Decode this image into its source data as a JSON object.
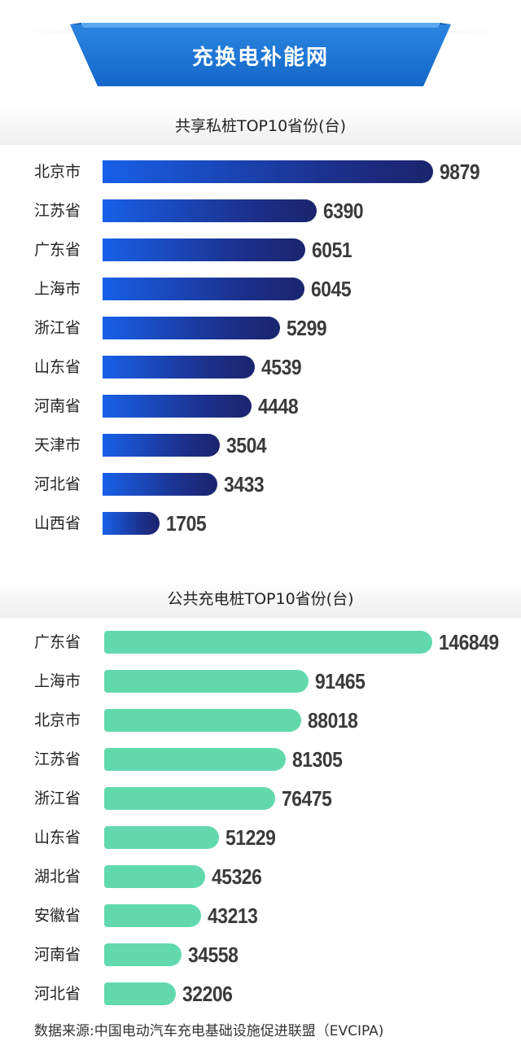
{
  "banner": {
    "title": "充换电补能网"
  },
  "chart_data": [
    {
      "type": "bar",
      "orientation": "horizontal",
      "title": "共享私桩TOP10省份(台)",
      "categories": [
        "北京市",
        "江苏省",
        "广东省",
        "上海市",
        "浙江省",
        "山东省",
        "河南省",
        "天津市",
        "河北省",
        "山西省"
      ],
      "values": [
        9879,
        6390,
        6051,
        6045,
        5299,
        4539,
        4448,
        3504,
        3433,
        1705
      ],
      "color": "#1a4fd0"
    },
    {
      "type": "bar",
      "orientation": "horizontal",
      "title": "公共充电桩TOP10省份(台)",
      "categories": [
        "广东省",
        "上海市",
        "北京市",
        "江苏省",
        "浙江省",
        "山东省",
        "湖北省",
        "安徽省",
        "河南省",
        "河北省"
      ],
      "values": [
        146849,
        91465,
        88018,
        81305,
        76475,
        51229,
        45326,
        43213,
        34558,
        32206
      ],
      "color": "#62d9ad"
    }
  ],
  "source": "数据来源:中国电动汽车充电基础设施促进联盟（EVCIPA)"
}
